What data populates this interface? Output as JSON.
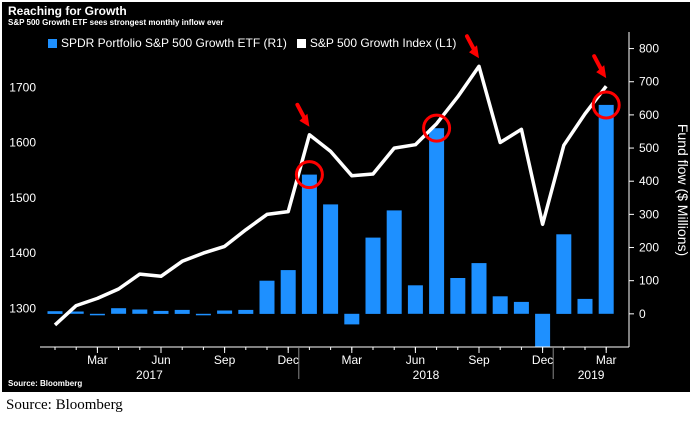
{
  "header": {
    "title": "Reaching for Growth",
    "subtitle": "S&P 500 Growth ETF sees strongest monthly inflow ever",
    "source_inner": "Source: Bloomberg"
  },
  "caption": "Source: Bloomberg",
  "colors": {
    "background": "#000000",
    "bar": "#1e90ff",
    "line": "#ffffff",
    "annotation": "#ff0000"
  },
  "chart_data": {
    "type": "bar",
    "x_axis": {
      "month_ticks": [
        "Mar",
        "Jun",
        "Sep",
        "Dec",
        "Mar",
        "Jun",
        "Sep",
        "Dec",
        "Mar"
      ],
      "year_labels": [
        "2017",
        "2018",
        "2019"
      ]
    },
    "categories": [
      "Jan 2017",
      "Feb 2017",
      "Mar 2017",
      "Apr 2017",
      "May 2017",
      "Jun 2017",
      "Jul 2017",
      "Aug 2017",
      "Sep 2017",
      "Oct 2017",
      "Nov 2017",
      "Dec 2017",
      "Jan 2018",
      "Feb 2018",
      "Mar 2018",
      "Apr 2018",
      "May 2018",
      "Jun 2018",
      "Jul 2018",
      "Aug 2018",
      "Sep 2018",
      "Oct 2018",
      "Nov 2018",
      "Dec 2018",
      "Jan 2019",
      "Feb 2019",
      "Mar 2019"
    ],
    "series": [
      {
        "name": "SPDR Portfolio S&P 500 Growth ETF (R1)",
        "type": "bar",
        "axis": "right",
        "color": "#1e90ff",
        "values": [
          8,
          7,
          -2,
          17,
          13,
          9,
          12,
          -4,
          10,
          12,
          100,
          132,
          420,
          330,
          -32,
          230,
          312,
          86,
          560,
          108,
          153,
          53,
          36,
          -100,
          240,
          45,
          630
        ]
      },
      {
        "name": "S&P 500 Growth Index (L1)",
        "type": "line",
        "axis": "left",
        "color": "#ffffff",
        "values": [
          1270,
          1305,
          1318,
          1335,
          1362,
          1358,
          1385,
          1400,
          1412,
          1442,
          1470,
          1475,
          1614,
          1584,
          1540,
          1543,
          1590,
          1596,
          1634,
          1683,
          1738,
          1600,
          1624,
          1452,
          1595,
          1652,
          1702
        ]
      }
    ],
    "y_left": {
      "ticks": [
        1300,
        1400,
        1500,
        1600,
        1700
      ],
      "ylim": [
        1230,
        1800
      ]
    },
    "y_right": {
      "label": "Fund flow ($ Millions)",
      "ticks": [
        0,
        100,
        200,
        300,
        400,
        500,
        600,
        700,
        800
      ],
      "ylim": [
        -100,
        850
      ]
    },
    "grid": false,
    "legend_placement": "top-left",
    "annotations": {
      "circles": [
        12,
        18,
        26
      ],
      "arrows": [
        12,
        20,
        26
      ]
    }
  }
}
